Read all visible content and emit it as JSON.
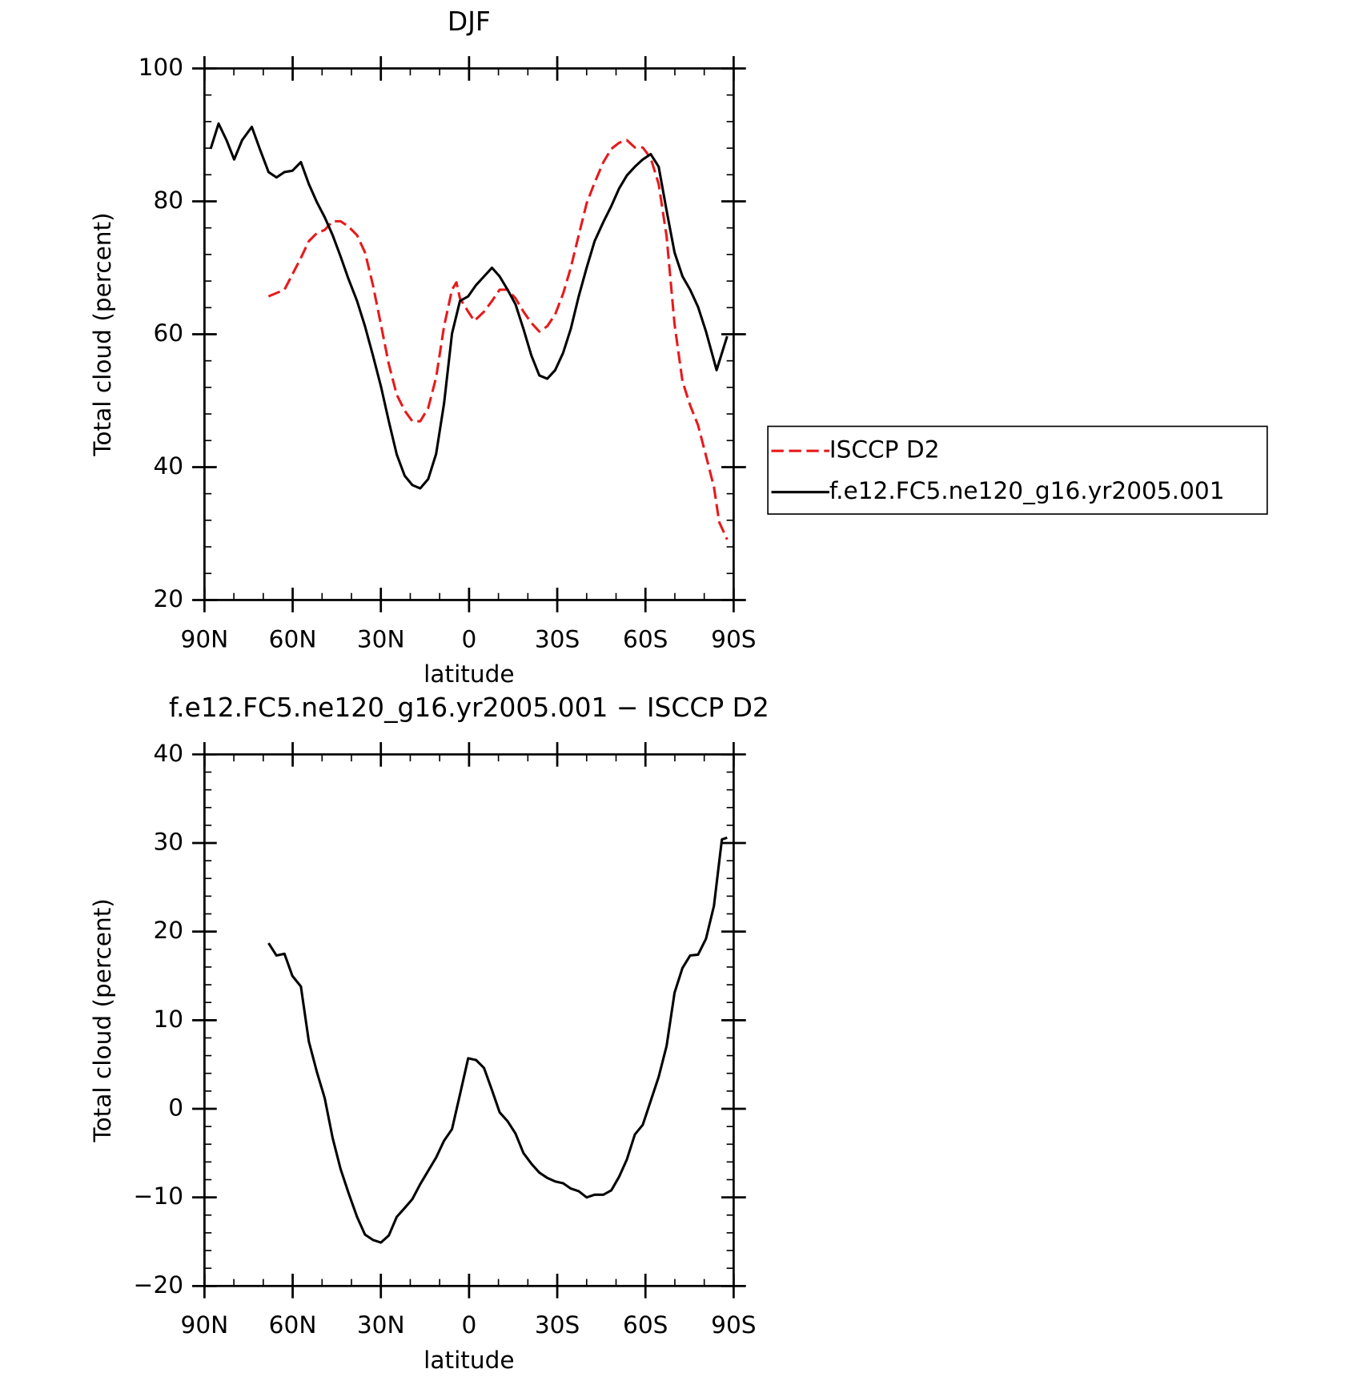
{
  "chart_data": [
    {
      "type": "line",
      "title": "DJF",
      "xlabel": "latitude",
      "ylabel": "Total cloud (percent)",
      "xlim": [
        90,
        -90
      ],
      "xticks": [
        {
          "value": 90,
          "label": "90N"
        },
        {
          "value": 60,
          "label": "60N"
        },
        {
          "value": 30,
          "label": "30N"
        },
        0,
        {
          "value": -30,
          "label": "30S"
        },
        {
          "value": -60,
          "label": "60S"
        },
        {
          "value": -90,
          "label": "90S"
        }
      ],
      "ylim": [
        20,
        100
      ],
      "yticks": [
        20,
        40,
        60,
        80,
        100
      ],
      "legend": "right",
      "series": [
        {
          "name": "ISCCP D2",
          "color": "#e8191b",
          "style": "dashed",
          "x": [
            68.2,
            65.5,
            62.8,
            60.1,
            57.3,
            54.5,
            51.8,
            49.1,
            46.4,
            43.7,
            41.0,
            38.1,
            35.4,
            32.7,
            30.0,
            27.3,
            24.6,
            21.9,
            19.3,
            16.6,
            13.9,
            11.2,
            8.5,
            5.8,
            4.3,
            3.1,
            0.3,
            -1.8,
            -5.1,
            -7.8,
            -10.4,
            -13.1,
            -15.8,
            -18.5,
            -21.2,
            -23.9,
            -26.6,
            -29.3,
            -32.0,
            -34.6,
            -37.3,
            -40.0,
            -42.7,
            -45.7,
            -48.4,
            -51.0,
            -53.7,
            -56.4,
            -59.1,
            -61.8,
            -64.5,
            -67.2,
            -69.9,
            -72.6,
            -75.2,
            -77.9,
            -80.6,
            -83.3,
            -85.1,
            -87.8
          ],
          "values": [
            65.7,
            66.2,
            66.7,
            69.0,
            71.4,
            74.0,
            75.2,
            75.7,
            77.0,
            77.0,
            76.2,
            74.9,
            72.3,
            67.4,
            61.5,
            55.5,
            50.9,
            48.5,
            46.9,
            46.9,
            48.9,
            53.5,
            61.2,
            66.7,
            67.8,
            65.4,
            63.4,
            62.0,
            63.4,
            65.0,
            66.7,
            66.7,
            65.4,
            63.4,
            61.7,
            60.4,
            61.2,
            63.0,
            66.1,
            70.0,
            74.9,
            79.7,
            82.8,
            85.9,
            87.9,
            88.8,
            89.2,
            88.1,
            88.1,
            86.5,
            82.6,
            74.7,
            61.5,
            52.9,
            49.3,
            46.3,
            41.7,
            37.0,
            31.7,
            29.1
          ]
        },
        {
          "name": "f.e12.FC5.ne120_g16.yr2005.001",
          "color": "#000000",
          "style": "solid",
          "x": [
            87.9,
            85.2,
            82.5,
            79.9,
            77.2,
            73.9,
            71.2,
            68.2,
            65.5,
            62.8,
            60.1,
            57.2,
            54.5,
            51.8,
            49.1,
            46.4,
            43.7,
            41.0,
            38.1,
            35.4,
            32.7,
            30.0,
            27.3,
            24.6,
            21.9,
            19.3,
            16.6,
            13.9,
            11.2,
            8.5,
            5.8,
            3.1,
            0.3,
            -2.4,
            -5.1,
            -7.8,
            -10.4,
            -13.1,
            -15.8,
            -18.5,
            -21.2,
            -23.9,
            -26.6,
            -29.3,
            -32.0,
            -34.6,
            -37.3,
            -40.0,
            -42.7,
            -45.7,
            -48.4,
            -51.0,
            -53.7,
            -56.4,
            -59.1,
            -61.8,
            -64.5,
            -67.2,
            -69.9,
            -72.6,
            -75.2,
            -77.9,
            -80.6,
            -84.2,
            -87.8
          ],
          "values": [
            87.9,
            91.7,
            89.2,
            86.3,
            89.2,
            91.2,
            87.9,
            84.4,
            83.6,
            84.4,
            84.6,
            85.9,
            82.6,
            79.9,
            77.6,
            74.9,
            71.7,
            68.3,
            65.0,
            61.2,
            56.8,
            52.2,
            46.9,
            41.9,
            38.7,
            37.3,
            36.8,
            38.2,
            42.0,
            49.6,
            60.1,
            65.0,
            65.7,
            67.4,
            68.7,
            70.0,
            68.7,
            66.7,
            64.5,
            60.8,
            56.8,
            53.8,
            53.3,
            54.6,
            57.2,
            60.8,
            65.7,
            70.0,
            74.0,
            76.9,
            79.3,
            81.9,
            83.9,
            85.2,
            86.3,
            87.1,
            85.2,
            78.6,
            72.3,
            68.7,
            66.7,
            64.1,
            60.4,
            54.6,
            59.7
          ]
        }
      ]
    },
    {
      "type": "line",
      "title": "f.e12.FC5.ne120_g16.yr2005.001 − ISCCP D2",
      "xlabel": "latitude",
      "ylabel": "Total cloud (percent)",
      "xlim": [
        90,
        -90
      ],
      "xticks": [
        {
          "value": 90,
          "label": "90N"
        },
        {
          "value": 60,
          "label": "60N"
        },
        {
          "value": 30,
          "label": "30N"
        },
        0,
        {
          "value": -30,
          "label": "30S"
        },
        {
          "value": -60,
          "label": "60S"
        },
        {
          "value": -90,
          "label": "90S"
        }
      ],
      "ylim": [
        -20,
        40
      ],
      "yticks": [
        {
          "value": -20,
          "label": "−20"
        },
        {
          "value": -10,
          "label": "−10"
        },
        0,
        10,
        20,
        30,
        40
      ],
      "series": [
        {
          "color": "#000000",
          "style": "solid",
          "x": [
            68.2,
            65.5,
            62.8,
            60.1,
            57.2,
            54.5,
            51.8,
            49.1,
            46.4,
            43.7,
            41.0,
            38.1,
            35.4,
            32.7,
            30.0,
            27.3,
            24.6,
            21.9,
            19.3,
            16.6,
            13.9,
            11.2,
            8.5,
            5.8,
            3.1,
            0.3,
            -2.4,
            -5.1,
            -7.8,
            -10.4,
            -13.1,
            -15.8,
            -18.5,
            -21.2,
            -23.9,
            -26.6,
            -29.3,
            -32.0,
            -34.6,
            -37.3,
            -40.0,
            -42.7,
            -45.7,
            -48.4,
            -51.0,
            -53.7,
            -56.4,
            -59.1,
            -61.8,
            -64.5,
            -67.2,
            -69.9,
            -72.6,
            -75.2,
            -77.9,
            -80.6,
            -83.3,
            -86.0,
            -87.8
          ],
          "values": [
            18.7,
            17.3,
            17.5,
            15.0,
            13.8,
            7.6,
            4.2,
            1.2,
            -3.3,
            -6.8,
            -9.5,
            -12.2,
            -14.2,
            -14.8,
            -15.1,
            -14.3,
            -12.2,
            -11.2,
            -10.2,
            -8.5,
            -7.0,
            -5.5,
            -3.6,
            -2.3,
            1.6,
            5.7,
            5.5,
            4.6,
            2.1,
            -0.4,
            -1.4,
            -2.8,
            -5.0,
            -6.2,
            -7.2,
            -7.8,
            -8.2,
            -8.4,
            -9.0,
            -9.3,
            -10.0,
            -9.7,
            -9.7,
            -9.2,
            -7.7,
            -5.7,
            -2.9,
            -1.8,
            0.9,
            3.6,
            7.1,
            13.1,
            15.9,
            17.3,
            17.4,
            19.2,
            22.9,
            30.4,
            30.6
          ]
        }
      ]
    }
  ]
}
